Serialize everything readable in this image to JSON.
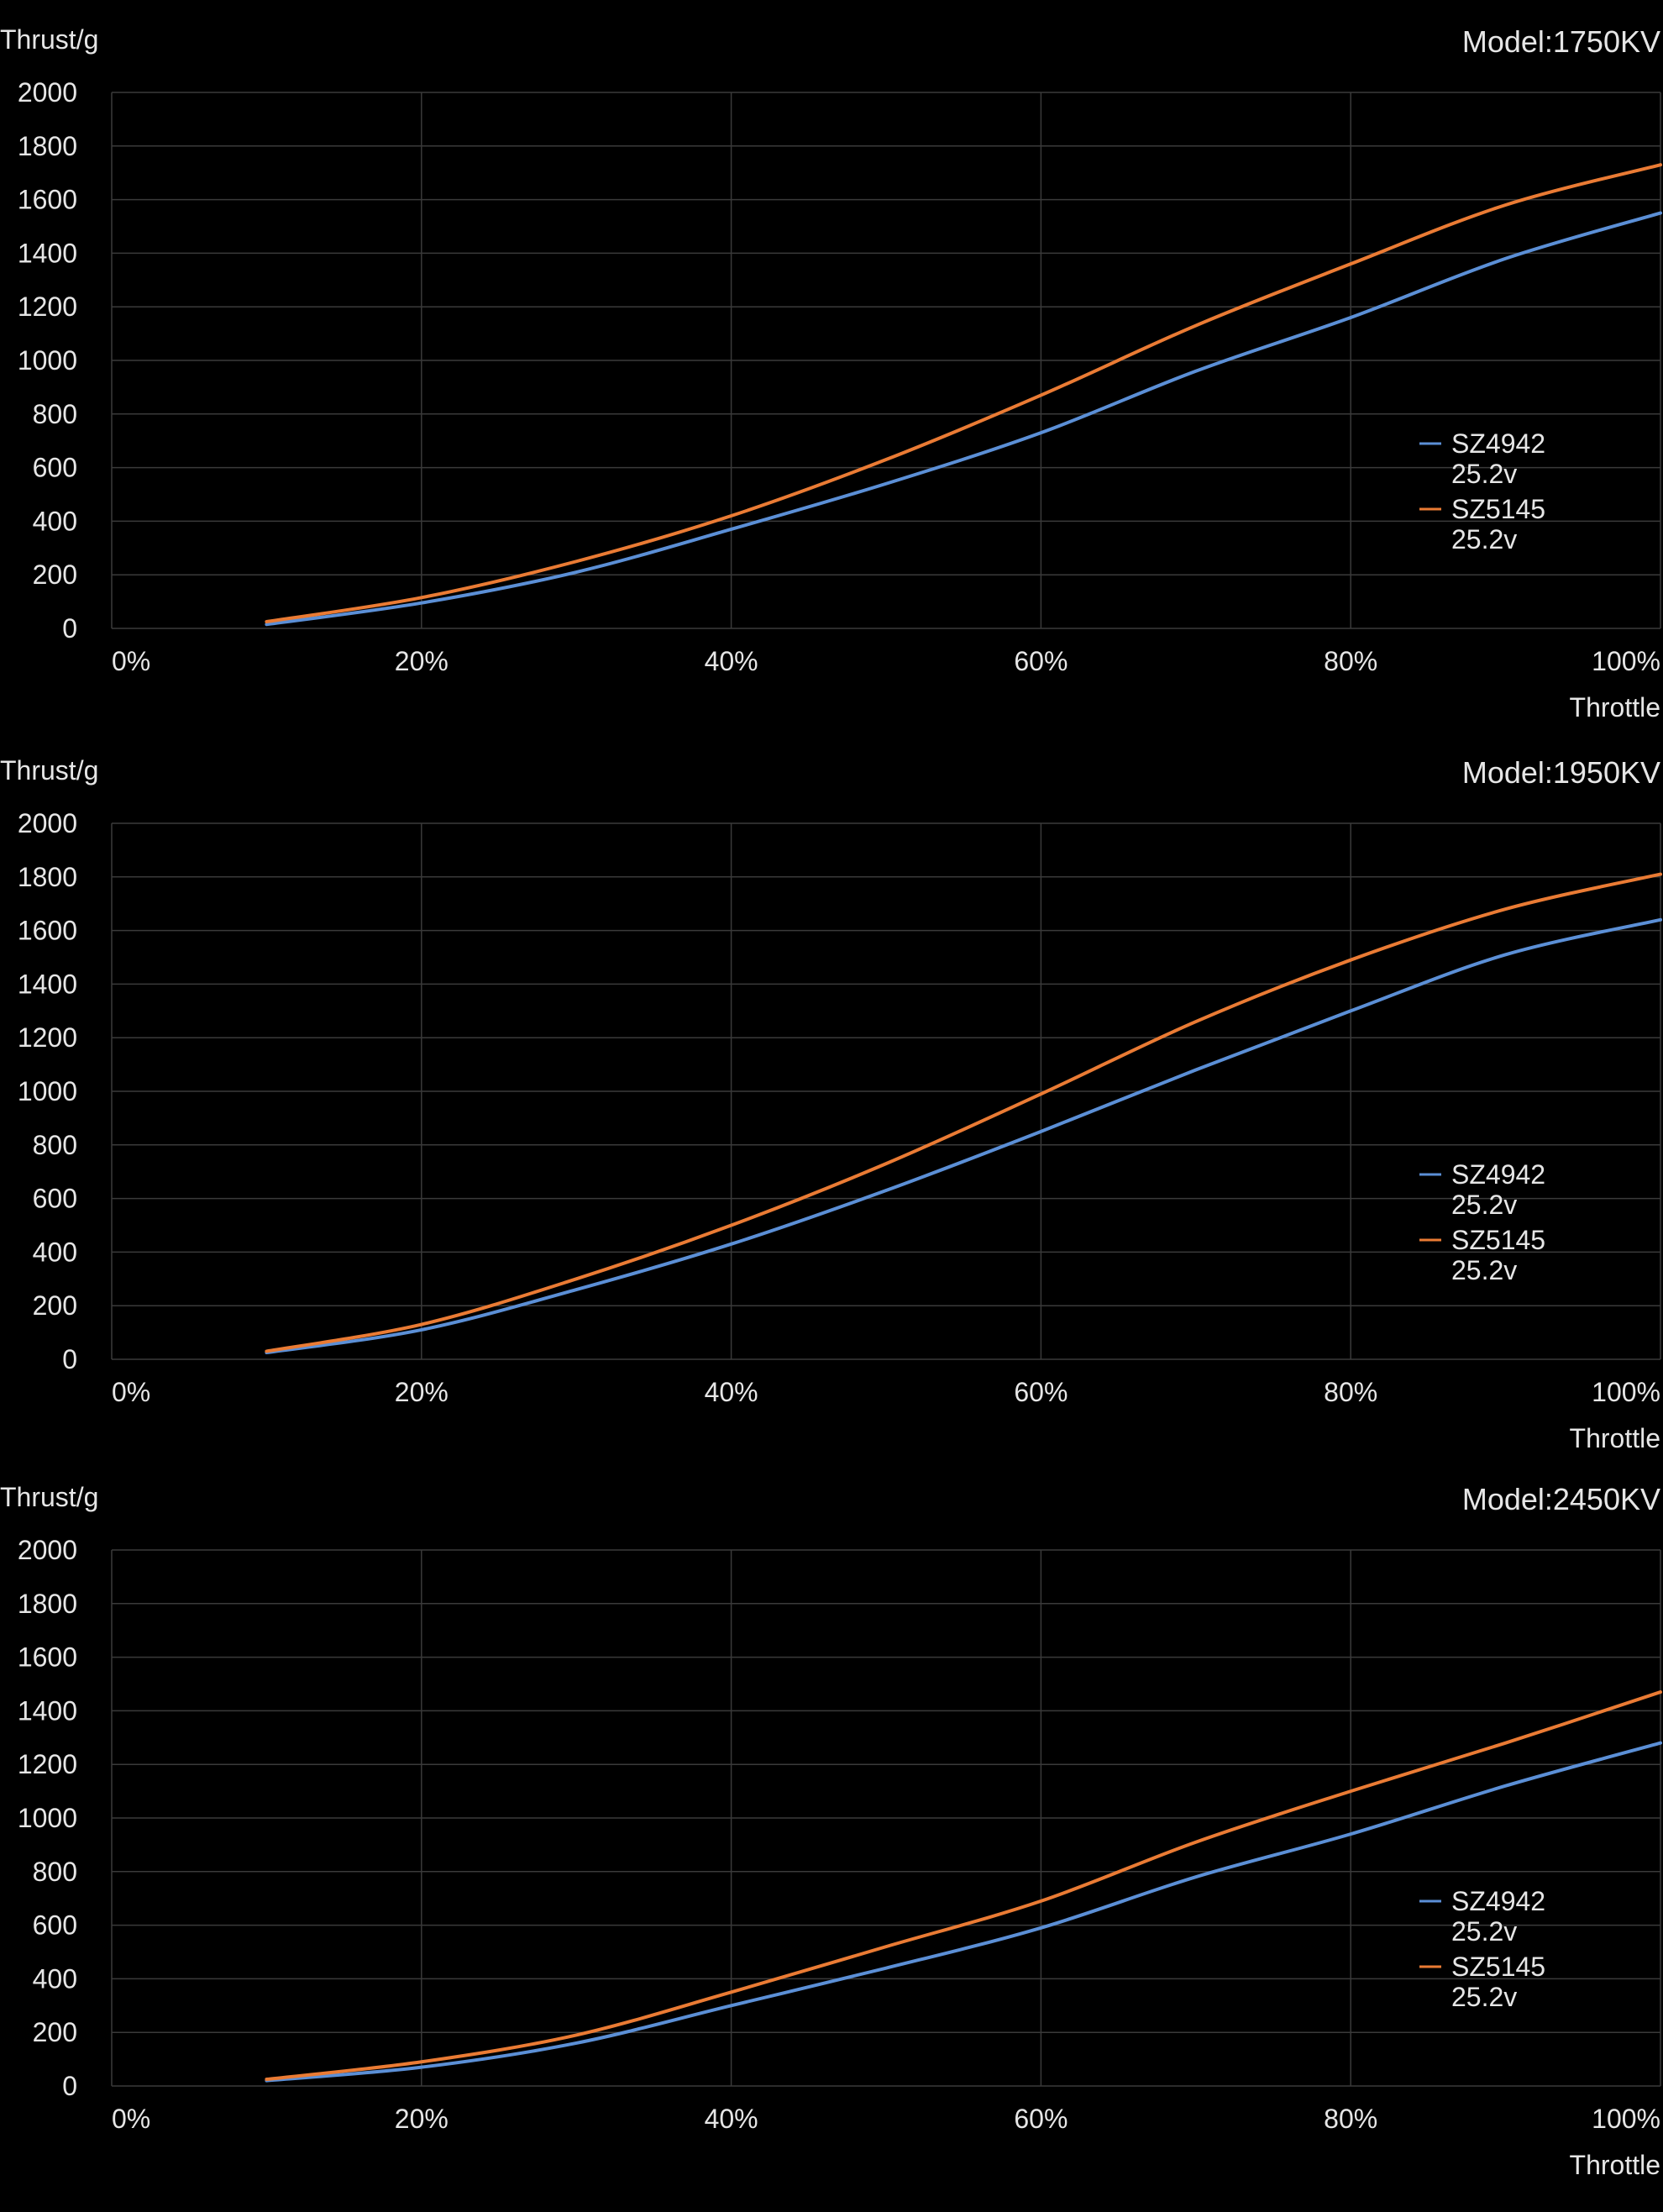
{
  "colors": {
    "background": "#000000",
    "grid": "#3a3a3a",
    "text": "#e6e6e6",
    "series_blue": "#5b8fd6",
    "series_orange": "#ea7b34"
  },
  "chart_data": [
    {
      "type": "line",
      "title": "Model:1750KV",
      "ylabel": "Thrust/g",
      "xlabel": "Throttle",
      "xlim": [
        0,
        100
      ],
      "ylim": [
        0,
        2000
      ],
      "x_ticks": [
        0,
        20,
        40,
        60,
        80,
        100
      ],
      "x_tick_labels": [
        "0%",
        "20%",
        "40%",
        "60%",
        "80%",
        "100%"
      ],
      "y_ticks": [
        0,
        200,
        400,
        600,
        800,
        1000,
        1200,
        1400,
        1600,
        1800,
        2000
      ],
      "y_tick_labels": [
        "0",
        "200",
        "400",
        "600",
        "800",
        "1000",
        "1200",
        "1400",
        "1600",
        "1800",
        "2000"
      ],
      "grid": true,
      "legend_position": "right",
      "x": [
        10,
        20,
        30,
        40,
        50,
        60,
        70,
        80,
        90,
        100
      ],
      "series": [
        {
          "name": "SZ4942 25.2v",
          "legend_lines": [
            "SZ4942",
            "25.2v"
          ],
          "color": "#5b8fd6",
          "values": [
            15,
            95,
            210,
            370,
            540,
            730,
            960,
            1160,
            1380,
            1550
          ]
        },
        {
          "name": "SZ5145 25.2v",
          "legend_lines": [
            "SZ5145",
            "25.2v"
          ],
          "color": "#ea7b34",
          "values": [
            25,
            115,
            250,
            420,
            630,
            870,
            1130,
            1360,
            1580,
            1730
          ]
        }
      ]
    },
    {
      "type": "line",
      "title": "Model:1950KV",
      "ylabel": "Thrust/g",
      "xlabel": "Throttle",
      "xlim": [
        0,
        100
      ],
      "ylim": [
        0,
        2000
      ],
      "x_ticks": [
        0,
        20,
        40,
        60,
        80,
        100
      ],
      "x_tick_labels": [
        "0%",
        "20%",
        "40%",
        "60%",
        "80%",
        "100%"
      ],
      "y_ticks": [
        0,
        200,
        400,
        600,
        800,
        1000,
        1200,
        1400,
        1600,
        1800,
        2000
      ],
      "y_tick_labels": [
        "0",
        "200",
        "400",
        "600",
        "800",
        "1000",
        "1200",
        "1400",
        "1600",
        "1800",
        "2000"
      ],
      "grid": true,
      "legend_position": "right",
      "x": [
        10,
        20,
        30,
        40,
        50,
        60,
        70,
        80,
        90,
        100
      ],
      "series": [
        {
          "name": "SZ4942 25.2v",
          "legend_lines": [
            "SZ4942",
            "25.2v"
          ],
          "color": "#5b8fd6",
          "values": [
            25,
            110,
            260,
            430,
            630,
            850,
            1080,
            1300,
            1510,
            1640
          ]
        },
        {
          "name": "SZ5145 25.2v",
          "legend_lines": [
            "SZ5145",
            "25.2v"
          ],
          "color": "#ea7b34",
          "values": [
            30,
            130,
            300,
            500,
            730,
            990,
            1260,
            1490,
            1680,
            1810
          ]
        }
      ]
    },
    {
      "type": "line",
      "title": "Model:2450KV",
      "ylabel": "Thrust/g",
      "xlabel": "Throttle",
      "xlim": [
        0,
        100
      ],
      "ylim": [
        0,
        2000
      ],
      "x_ticks": [
        0,
        20,
        40,
        60,
        80,
        100
      ],
      "x_tick_labels": [
        "0%",
        "20%",
        "40%",
        "60%",
        "80%",
        "100%"
      ],
      "y_ticks": [
        0,
        200,
        400,
        600,
        800,
        1000,
        1200,
        1400,
        1600,
        1800,
        2000
      ],
      "y_tick_labels": [
        "0",
        "200",
        "400",
        "600",
        "800",
        "1000",
        "1200",
        "1400",
        "1600",
        "1800",
        "2000"
      ],
      "grid": true,
      "legend_position": "right",
      "x": [
        10,
        20,
        30,
        40,
        50,
        60,
        70,
        80,
        90,
        100
      ],
      "series": [
        {
          "name": "SZ4942 25.2v",
          "legend_lines": [
            "SZ4942",
            "25.2v"
          ],
          "color": "#5b8fd6",
          "values": [
            20,
            70,
            160,
            300,
            440,
            590,
            780,
            940,
            1120,
            1280
          ]
        },
        {
          "name": "SZ5145 25.2v",
          "legend_lines": [
            "SZ5145",
            "25.2v"
          ],
          "color": "#ea7b34",
          "values": [
            25,
            90,
            190,
            350,
            520,
            690,
            910,
            1100,
            1280,
            1470
          ]
        }
      ]
    }
  ]
}
